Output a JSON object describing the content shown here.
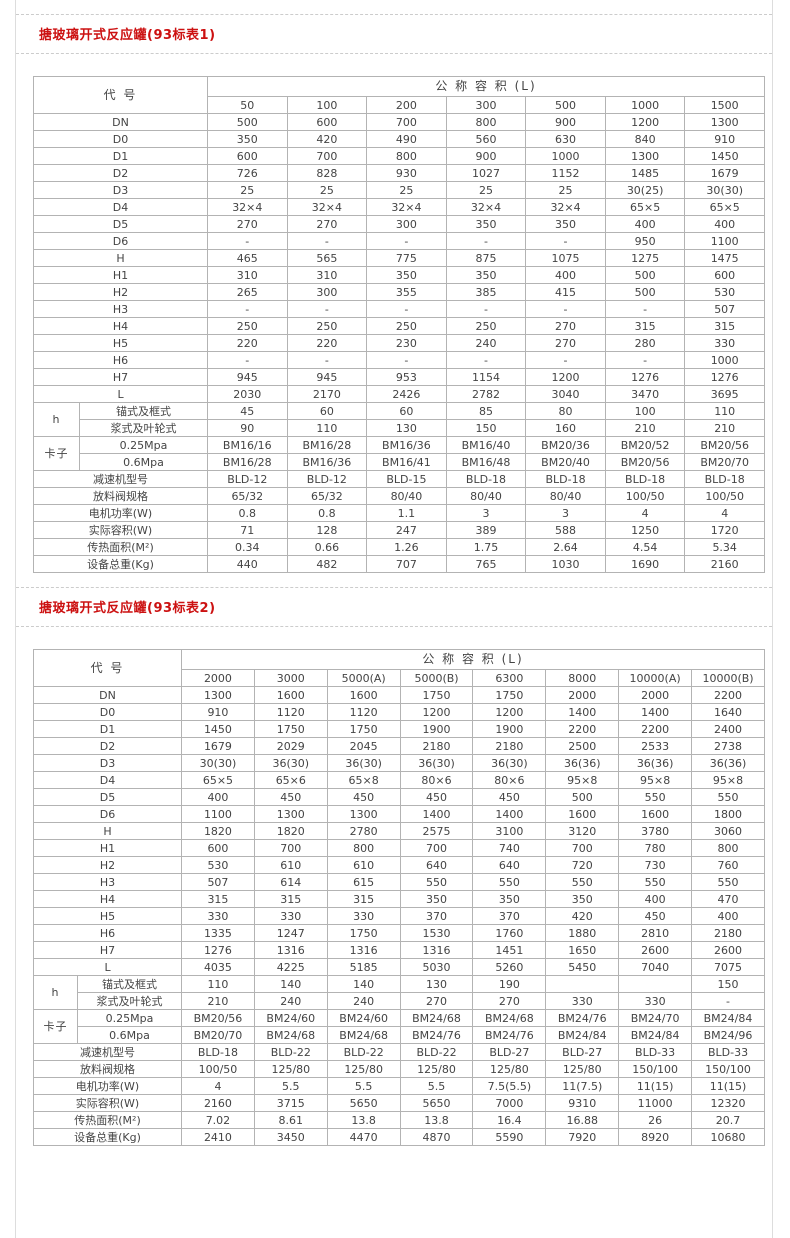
{
  "page": {
    "accent_color": "#cc1111",
    "border_color": "#b3b3b3"
  },
  "section1": {
    "title": "搪玻璃开式反应罐(93标表1)",
    "table": {
      "corner": "代 号",
      "span_header": "公 称 容 积 (L)",
      "columns": [
        "50",
        "100",
        "200",
        "300",
        "500",
        "1000",
        "1500"
      ],
      "rows": [
        {
          "label": "DN",
          "values": [
            "500",
            "600",
            "700",
            "800",
            "900",
            "1200",
            "1300"
          ]
        },
        {
          "label": "D0",
          "values": [
            "350",
            "420",
            "490",
            "560",
            "630",
            "840",
            "910"
          ]
        },
        {
          "label": "D1",
          "values": [
            "600",
            "700",
            "800",
            "900",
            "1000",
            "1300",
            "1450"
          ]
        },
        {
          "label": "D2",
          "values": [
            "726",
            "828",
            "930",
            "1027",
            "1152",
            "1485",
            "1679"
          ]
        },
        {
          "label": "D3",
          "values": [
            "25",
            "25",
            "25",
            "25",
            "25",
            "30(25)",
            "30(30)"
          ]
        },
        {
          "label": "D4",
          "values": [
            "32×4",
            "32×4",
            "32×4",
            "32×4",
            "32×4",
            "65×5",
            "65×5"
          ]
        },
        {
          "label": "D5",
          "values": [
            "270",
            "270",
            "300",
            "350",
            "350",
            "400",
            "400"
          ]
        },
        {
          "label": "D6",
          "values": [
            "-",
            "-",
            "-",
            "-",
            "-",
            "950",
            "1100"
          ]
        },
        {
          "label": "H",
          "values": [
            "465",
            "565",
            "775",
            "875",
            "1075",
            "1275",
            "1475"
          ]
        },
        {
          "label": "H1",
          "values": [
            "310",
            "310",
            "350",
            "350",
            "400",
            "500",
            "600"
          ]
        },
        {
          "label": "H2",
          "values": [
            "265",
            "300",
            "355",
            "385",
            "415",
            "500",
            "530"
          ]
        },
        {
          "label": "H3",
          "values": [
            "-",
            "-",
            "-",
            "-",
            "-",
            "-",
            "507"
          ]
        },
        {
          "label": "H4",
          "values": [
            "250",
            "250",
            "250",
            "250",
            "270",
            "315",
            "315"
          ]
        },
        {
          "label": "H5",
          "values": [
            "220",
            "220",
            "230",
            "240",
            "270",
            "280",
            "330"
          ]
        },
        {
          "label": "H6",
          "values": [
            "-",
            "-",
            "-",
            "-",
            "-",
            "-",
            "1000"
          ]
        },
        {
          "label": "H7",
          "values": [
            "945",
            "945",
            "953",
            "1154",
            "1200",
            "1276",
            "1276"
          ]
        },
        {
          "label": "L",
          "values": [
            "2030",
            "2170",
            "2426",
            "2782",
            "3040",
            "3470",
            "3695"
          ]
        },
        {
          "group": "h",
          "rowspan": 2,
          "label": "锚式及框式",
          "values": [
            "45",
            "60",
            "60",
            "85",
            "80",
            "100",
            "110"
          ]
        },
        {
          "sub": true,
          "label": "浆式及叶轮式",
          "values": [
            "90",
            "110",
            "130",
            "150",
            "160",
            "210",
            "210"
          ]
        },
        {
          "group": "卡子",
          "rowspan": 2,
          "label": "0.25Mpa",
          "values": [
            "BM16/16",
            "BM16/28",
            "BM16/36",
            "BM16/40",
            "BM20/36",
            "BM20/52",
            "BM20/56"
          ]
        },
        {
          "sub": true,
          "label": "0.6Mpa",
          "values": [
            "BM16/28",
            "BM16/36",
            "BM16/41",
            "BM16/48",
            "BM20/40",
            "BM20/56",
            "BM20/70"
          ]
        },
        {
          "label": "减速机型号",
          "values": [
            "BLD-12",
            "BLD-12",
            "BLD-15",
            "BLD-18",
            "BLD-18",
            "BLD-18",
            "BLD-18"
          ]
        },
        {
          "label": "放料阀规格",
          "values": [
            "65/32",
            "65/32",
            "80/40",
            "80/40",
            "80/40",
            "100/50",
            "100/50"
          ]
        },
        {
          "label": "电机功率(W)",
          "values": [
            "0.8",
            "0.8",
            "1.1",
            "3",
            "3",
            "4",
            "4"
          ]
        },
        {
          "label": "实际容积(W)",
          "values": [
            "71",
            "128",
            "247",
            "389",
            "588",
            "1250",
            "1720"
          ]
        },
        {
          "label": "传热面积(M²)",
          "values": [
            "0.34",
            "0.66",
            "1.26",
            "1.75",
            "2.64",
            "4.54",
            "5.34"
          ]
        },
        {
          "label": "设备总重(Kg)",
          "values": [
            "440",
            "482",
            "707",
            "765",
            "1030",
            "1690",
            "2160"
          ]
        }
      ]
    }
  },
  "section2": {
    "title": "搪玻璃开式反应罐(93标表2)",
    "table": {
      "corner": "代 号",
      "span_header": "公 称 容 积 (L)",
      "columns": [
        "2000",
        "3000",
        "5000(A)",
        "5000(B)",
        "6300",
        "8000",
        "10000(A)",
        "10000(B)"
      ],
      "rows": [
        {
          "label": "DN",
          "values": [
            "1300",
            "1600",
            "1600",
            "1750",
            "1750",
            "2000",
            "2000",
            "2200"
          ]
        },
        {
          "label": "D0",
          "values": [
            "910",
            "1120",
            "1120",
            "1200",
            "1200",
            "1400",
            "1400",
            "1640"
          ]
        },
        {
          "label": "D1",
          "values": [
            "1450",
            "1750",
            "1750",
            "1900",
            "1900",
            "2200",
            "2200",
            "2400"
          ]
        },
        {
          "label": "D2",
          "values": [
            "1679",
            "2029",
            "2045",
            "2180",
            "2180",
            "2500",
            "2533",
            "2738"
          ]
        },
        {
          "label": "D3",
          "values": [
            "30(30)",
            "36(30)",
            "36(30)",
            "36(30)",
            "36(30)",
            "36(36)",
            "36(36)",
            "36(36)"
          ]
        },
        {
          "label": "D4",
          "values": [
            "65×5",
            "65×6",
            "65×8",
            "80×6",
            "80×6",
            "95×8",
            "95×8",
            "95×8"
          ]
        },
        {
          "label": "D5",
          "values": [
            "400",
            "450",
            "450",
            "450",
            "450",
            "500",
            "550",
            "550"
          ]
        },
        {
          "label": "D6",
          "values": [
            "1100",
            "1300",
            "1300",
            "1400",
            "1400",
            "1600",
            "1600",
            "1800"
          ]
        },
        {
          "label": "H",
          "values": [
            "1820",
            "1820",
            "2780",
            "2575",
            "3100",
            "3120",
            "3780",
            "3060"
          ]
        },
        {
          "label": "H1",
          "values": [
            "600",
            "700",
            "800",
            "700",
            "740",
            "700",
            "780",
            "800"
          ]
        },
        {
          "label": "H2",
          "values": [
            "530",
            "610",
            "610",
            "640",
            "640",
            "720",
            "730",
            "760"
          ]
        },
        {
          "label": "H3",
          "values": [
            "507",
            "614",
            "615",
            "550",
            "550",
            "550",
            "550",
            "550"
          ]
        },
        {
          "label": "H4",
          "values": [
            "315",
            "315",
            "315",
            "350",
            "350",
            "350",
            "400",
            "470"
          ]
        },
        {
          "label": "H5",
          "values": [
            "330",
            "330",
            "330",
            "370",
            "370",
            "420",
            "450",
            "400"
          ]
        },
        {
          "label": "H6",
          "values": [
            "1335",
            "1247",
            "1750",
            "1530",
            "1760",
            "1880",
            "2810",
            "2180"
          ]
        },
        {
          "label": "H7",
          "values": [
            "1276",
            "1316",
            "1316",
            "1316",
            "1451",
            "1650",
            "2600",
            "2600"
          ]
        },
        {
          "label": "L",
          "values": [
            "4035",
            "4225",
            "5185",
            "5030",
            "5260",
            "5450",
            "7040",
            "7075"
          ]
        },
        {
          "group": "h",
          "rowspan": 2,
          "label": "锚式及框式",
          "values": [
            "110",
            "140",
            "140",
            "130",
            "190",
            "",
            "",
            "150"
          ]
        },
        {
          "sub": true,
          "label": "浆式及叶轮式",
          "values": [
            "210",
            "240",
            "240",
            "270",
            "270",
            "330",
            "330",
            "-"
          ]
        },
        {
          "group": "卡子",
          "rowspan": 2,
          "label": "0.25Mpa",
          "values": [
            "BM20/56",
            "BM24/60",
            "BM24/60",
            "BM24/68",
            "BM24/68",
            "BM24/76",
            "BM24/70",
            "BM24/84"
          ]
        },
        {
          "sub": true,
          "label": "0.6Mpa",
          "values": [
            "BM20/70",
            "BM24/68",
            "BM24/68",
            "BM24/76",
            "BM24/76",
            "BM24/84",
            "BM24/84",
            "BM24/96"
          ]
        },
        {
          "label": "减速机型号",
          "values": [
            "BLD-18",
            "BLD-22",
            "BLD-22",
            "BLD-22",
            "BLD-27",
            "BLD-27",
            "BLD-33",
            "BLD-33"
          ]
        },
        {
          "label": "放料阀规格",
          "values": [
            "100/50",
            "125/80",
            "125/80",
            "125/80",
            "125/80",
            "125/80",
            "150/100",
            "150/100"
          ]
        },
        {
          "label": "电机功率(W)",
          "values": [
            "4",
            "5.5",
            "5.5",
            "5.5",
            "7.5(5.5)",
            "11(7.5)",
            "11(15)",
            "11(15)"
          ]
        },
        {
          "label": "实际容积(W)",
          "values": [
            "2160",
            "3715",
            "5650",
            "5650",
            "7000",
            "9310",
            "11000",
            "12320"
          ]
        },
        {
          "label": "传热面积(M²)",
          "values": [
            "7.02",
            "8.61",
            "13.8",
            "13.8",
            "16.4",
            "16.88",
            "26",
            "20.7"
          ]
        },
        {
          "label": "设备总重(Kg)",
          "values": [
            "2410",
            "3450",
            "4470",
            "4870",
            "5590",
            "7920",
            "8920",
            "10680"
          ]
        }
      ]
    }
  }
}
